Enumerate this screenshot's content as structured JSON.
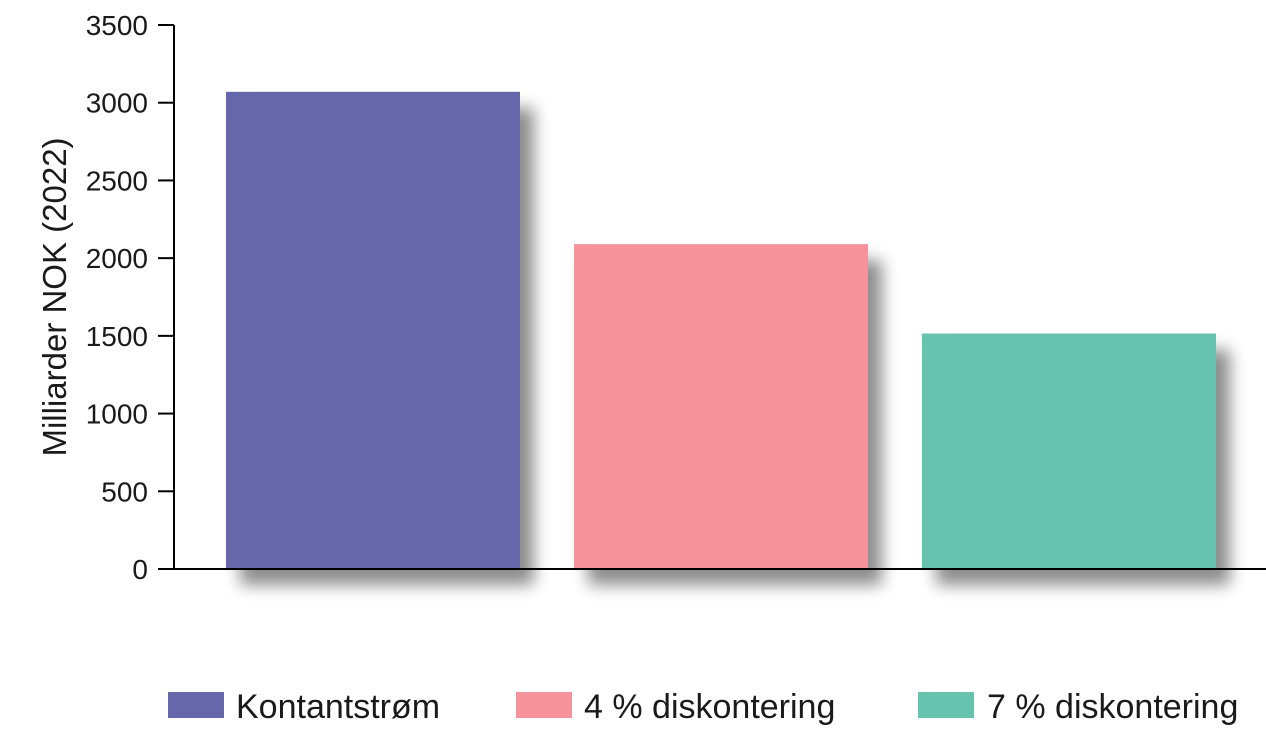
{
  "chart_data": {
    "type": "bar",
    "title": "",
    "xlabel": "",
    "ylabel": "Milliarder NOK (2022)",
    "ylim": [
      0,
      3500
    ],
    "yticks": [
      0,
      500,
      1000,
      1500,
      2000,
      2500,
      3000,
      3500
    ],
    "grid": false,
    "legend_position": "bottom",
    "series": [
      {
        "name": "Kontantstrøm",
        "value": 3070,
        "color": "#6666aa"
      },
      {
        "name": "4 % diskontering",
        "value": 2090,
        "color": "#f5929a"
      },
      {
        "name": "7 % diskontering",
        "value": 1515,
        "color": "#66c4ae"
      }
    ]
  }
}
